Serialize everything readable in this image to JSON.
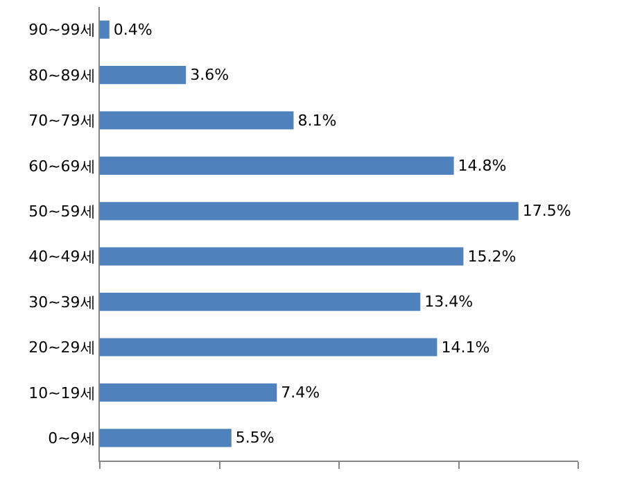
{
  "chart_data": {
    "type": "bar",
    "orientation": "horizontal",
    "categories": [
      "90~99세",
      "80~89세",
      "70~79세",
      "60~69세",
      "50~59세",
      "40~49세",
      "30~39세",
      "20~29세",
      "10~19세",
      "0~9세"
    ],
    "values": [
      0.4,
      3.6,
      8.1,
      14.8,
      17.5,
      15.2,
      13.4,
      14.1,
      7.4,
      5.5
    ],
    "value_labels": [
      "0.4%",
      "3.6%",
      "8.1%",
      "14.8%",
      "17.5%",
      "15.2%",
      "13.4%",
      "14.1%",
      "7.4%",
      "5.5%"
    ],
    "color": "#4f81bd",
    "xlim": [
      0,
      20
    ],
    "xticks": [
      {
        "value": 0,
        "label": null
      },
      {
        "value": 5,
        "label": null
      },
      {
        "value": 10,
        "label": null
      },
      {
        "value": 15,
        "label": null
      },
      {
        "value": 20,
        "label": null
      }
    ],
    "tick_labels": "y",
    "grid": false,
    "legend": false
  }
}
